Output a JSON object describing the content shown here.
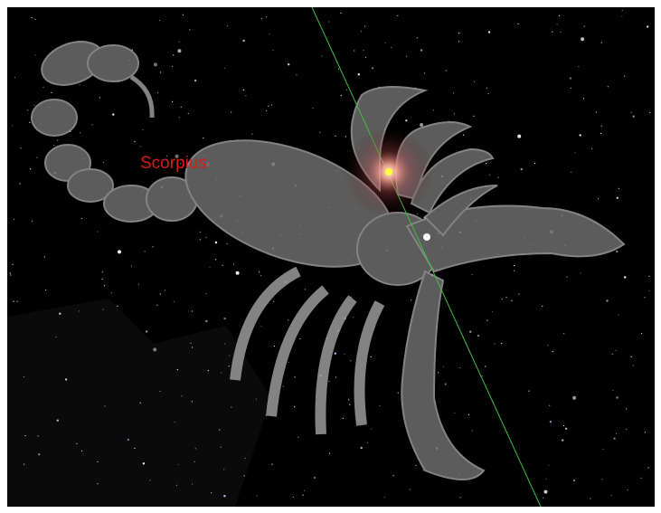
{
  "label": "Scorpius"
}
